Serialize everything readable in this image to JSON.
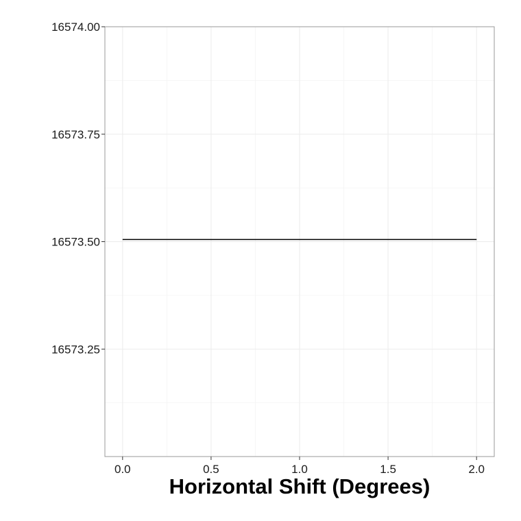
{
  "chart_data": {
    "type": "line",
    "title": "",
    "xlabel": "Horizontal Shift (Degrees)",
    "ylabel": "",
    "xlim": [
      -0.1,
      2.1
    ],
    "ylim": [
      16573.0,
      16574.0
    ],
    "x_ticks": [
      0.0,
      0.5,
      1.0,
      1.5,
      2.0
    ],
    "x_tick_labels": [
      "0.0",
      "0.5",
      "1.0",
      "1.5",
      "2.0"
    ],
    "y_ticks": [
      16573.25,
      16573.5,
      16573.75,
      16574.0
    ],
    "y_tick_labels": [
      "16573.25",
      "16573.50",
      "16573.75",
      "16574.00"
    ],
    "grid": true,
    "series": [
      {
        "x": [
          0.0,
          2.0
        ],
        "y": [
          16573.505,
          16573.505
        ]
      }
    ],
    "colors": {
      "line": "#000000",
      "grid": "#ebebeb",
      "border": "#999999"
    }
  }
}
